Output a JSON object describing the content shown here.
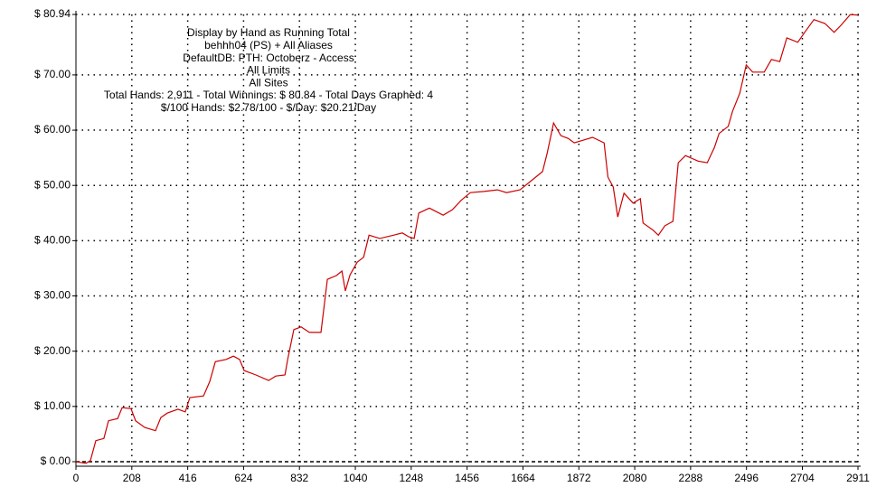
{
  "chart_data": {
    "type": "line",
    "annotations": [
      "Display by Hand as Running Total",
      "behhh04 (PS) + All Aliases",
      "DefaultDB: PTH: Octoberz - Access",
      "All Limits",
      "All Sites",
      "Total Hands: 2,911 - Total Winnings: $ 80.84 - Total Days Graphed: 4",
      "$/100 Hands: $2.78/100 - $/Day: $20.21/Day"
    ],
    "x": [
      0,
      37,
      54,
      74,
      104,
      121,
      155,
      172,
      205,
      222,
      256,
      296,
      316,
      340,
      380,
      407,
      424,
      475,
      498,
      519,
      559,
      586,
      609,
      626,
      670,
      717,
      744,
      778,
      788,
      811,
      838,
      869,
      912,
      936,
      970,
      990,
      1003,
      1020,
      1047,
      1071,
      1091,
      1131,
      1182,
      1215,
      1239,
      1259,
      1276,
      1316,
      1367,
      1401,
      1434,
      1468,
      1519,
      1569,
      1603,
      1653,
      1704,
      1737,
      1754,
      1778,
      1805,
      1832,
      1855,
      1889,
      1923,
      1966,
      1980,
      2000,
      2017,
      2040,
      2074,
      2101,
      2111,
      2148,
      2168,
      2192,
      2222,
      2242,
      2269,
      2316,
      2350,
      2377,
      2394,
      2428,
      2444,
      2471,
      2495,
      2519,
      2562,
      2589,
      2620,
      2646,
      2687,
      2714,
      2747,
      2788,
      2822,
      2848,
      2882,
      2911
    ],
    "series": [
      {
        "name": "Running Total",
        "color": "#cc0000",
        "values": [
          0,
          -0.3,
          0.2,
          3.8,
          4.2,
          7.4,
          7.8,
          9.8,
          9.6,
          7.4,
          6.2,
          5.6,
          8,
          8.8,
          9.5,
          9,
          11.6,
          11.9,
          14.5,
          18.1,
          18.5,
          19.1,
          18.5,
          16.5,
          15.7,
          14.7,
          15.5,
          15.7,
          18.5,
          23.9,
          24.4,
          23.4,
          23.4,
          33,
          33.7,
          34.5,
          30.9,
          33.8,
          36.1,
          37,
          41,
          40.4,
          41,
          41.4,
          40.7,
          40.4,
          45,
          45.9,
          44.6,
          45.6,
          47.3,
          48.7,
          48.9,
          49.2,
          48.7,
          49.2,
          51.2,
          52.5,
          55.8,
          61.3,
          59,
          58.5,
          57.7,
          58.2,
          58.7,
          57.7,
          51.5,
          49.7,
          44.3,
          48.6,
          46.8,
          47.6,
          43.2,
          41.9,
          41,
          42.7,
          43.5,
          54.1,
          55.4,
          54.4,
          54.1,
          56.9,
          59.4,
          60.7,
          63.4,
          66.7,
          71.8,
          70.5,
          70.5,
          72.8,
          72.4,
          76.7,
          75.9,
          77.8,
          80,
          79.3,
          77.7,
          79,
          80.9,
          80.84
        ]
      }
    ],
    "xlim": [
      0,
      2911
    ],
    "ylim": [
      -0.82,
      80.94
    ],
    "xticks": [
      0,
      208,
      416,
      624,
      832,
      1040,
      1248,
      1456,
      1664,
      1872,
      2080,
      2288,
      2496,
      2704,
      2911
    ],
    "yticks": [
      {
        "value": 0,
        "label": "$ 0.00"
      },
      {
        "value": 10,
        "label": "$ 10.00"
      },
      {
        "value": 20,
        "label": "$ 20.00"
      },
      {
        "value": 30,
        "label": "$ 30.00"
      },
      {
        "value": 40,
        "label": "$ 40.00"
      },
      {
        "value": 50,
        "label": "$ 50.00"
      },
      {
        "value": 60,
        "label": "$ 60.00"
      },
      {
        "value": 70,
        "label": "$ 70.00"
      },
      {
        "value": 80.94,
        "label": "$ 80.94"
      }
    ],
    "grid": true
  }
}
